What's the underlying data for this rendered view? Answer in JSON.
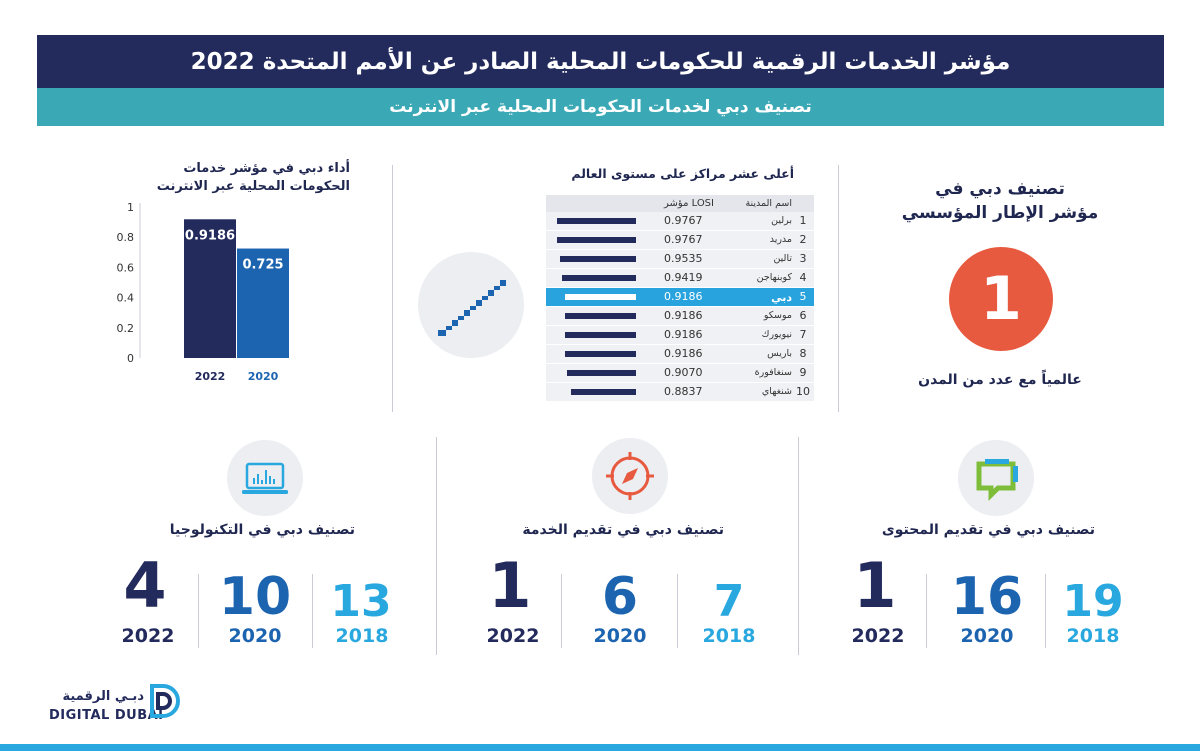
{
  "header": {
    "title": "مؤشر الخدمات الرقمية للحكومات المحلية الصادر عن الأمم المتحدة 2022",
    "subtitle": "تصنيف دبي لخدمات الحكومات المحلية عبر الانترنت"
  },
  "institutional": {
    "title_line1": "تصنيف دبي في",
    "title_line2": "مؤشر الإطار المؤسسي",
    "rank": "1",
    "note": "عالمياً مع عدد من المدن"
  },
  "ranking_table": {
    "title": "أعلى عشر مراكز على مستوى العالم",
    "col_city": "اسم المدينة",
    "col_score": "مؤشر LOSI",
    "rows": [
      {
        "rank": "1",
        "city": "برلين",
        "score": "0.9767",
        "bar": 0.9767
      },
      {
        "rank": "2",
        "city": "مدريد",
        "score": "0.9767",
        "bar": 0.9767
      },
      {
        "rank": "3",
        "city": "تالين",
        "score": "0.9535",
        "bar": 0.9535
      },
      {
        "rank": "4",
        "city": "كوبنهاجن",
        "score": "0.9419",
        "bar": 0.9419
      },
      {
        "rank": "5",
        "city": "دبي",
        "score": "0.9186",
        "bar": 0.9186,
        "highlight": true
      },
      {
        "rank": "6",
        "city": "موسكو",
        "score": "0.9186",
        "bar": 0.9186
      },
      {
        "rank": "7",
        "city": "نيويورك",
        "score": "0.9186",
        "bar": 0.9186
      },
      {
        "rank": "8",
        "city": "باريس",
        "score": "0.9186",
        "bar": 0.9186
      },
      {
        "rank": "9",
        "city": "سنغافورة",
        "score": "0.9070",
        "bar": 0.907
      },
      {
        "rank": "10",
        "city": "شنغهاي",
        "score": "0.8837",
        "bar": 0.8837
      }
    ]
  },
  "chart_data": {
    "type": "bar",
    "title_line1": "أداء دبي في مؤشر خدمات",
    "title_line2": "الحكومات المحلية عبر الانترنت",
    "categories": [
      "2022",
      "2020"
    ],
    "values": [
      0.9186,
      0.725
    ],
    "value_labels": [
      "0.9186",
      "0.725"
    ],
    "colors": [
      "#232a5c",
      "#1c64b0"
    ],
    "ylim": [
      0,
      1
    ],
    "yticks": [
      0,
      0.2,
      0.4,
      0.6,
      0.8,
      1
    ],
    "ytick_labels": [
      "0",
      "0.2",
      "0.4",
      "0.6",
      "0.8",
      "1"
    ],
    "grid": false
  },
  "sections": [
    {
      "key": "content",
      "title": "تصنيف دبي في تقديم المحتوى",
      "icon": "chat-bubble-icon",
      "r2022": "1",
      "r2020": "16",
      "r2018": "19",
      "y2022": "2022",
      "y2020": "2020",
      "y2018": "2018"
    },
    {
      "key": "service",
      "title": "تصنيف دبي في تقديم الخدمة",
      "icon": "compass-icon",
      "r2022": "1",
      "r2020": "6",
      "r2018": "7",
      "y2022": "2022",
      "y2020": "2020",
      "y2018": "2018"
    },
    {
      "key": "tech",
      "title": "تصنيف دبي في التكنولوجيا",
      "icon": "laptop-chart-icon",
      "r2022": "4",
      "r2020": "10",
      "r2018": "13",
      "y2022": "2022",
      "y2020": "2020",
      "y2018": "2018"
    }
  ],
  "logo": {
    "arabic": "دبـي الرقمية",
    "english": "DIGITAL DUBAI"
  },
  "colors": {
    "navy": "#232a5c",
    "teal": "#3aa8b5",
    "blue": "#1c64b0",
    "sky": "#29a8df",
    "orange": "#e85a3f",
    "green": "#7dbd3a"
  }
}
